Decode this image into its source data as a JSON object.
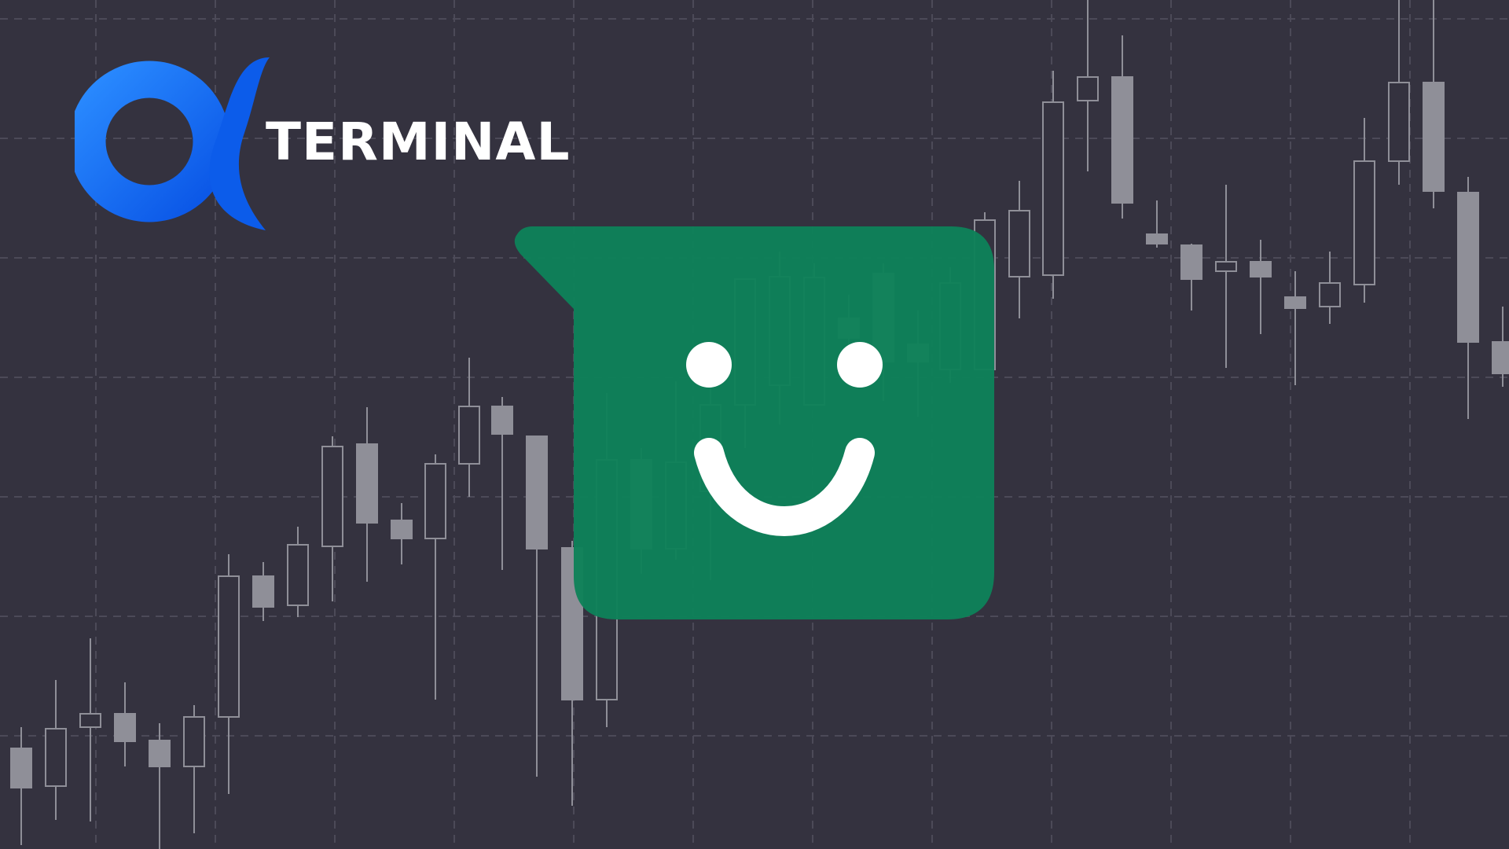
{
  "brand": {
    "name": "TERMINAL",
    "logo_icon": "alpha-icon",
    "logo_color": "#1f6fff"
  },
  "mascot": {
    "icon": "smiley-chat-bubble-icon",
    "color": "#0e8159",
    "face_color": "#ffffff"
  },
  "background": {
    "color": "#34323f",
    "grid_color": "#4c4a58",
    "candle_color": "#8f8f98",
    "chart_type": "candlestick"
  }
}
